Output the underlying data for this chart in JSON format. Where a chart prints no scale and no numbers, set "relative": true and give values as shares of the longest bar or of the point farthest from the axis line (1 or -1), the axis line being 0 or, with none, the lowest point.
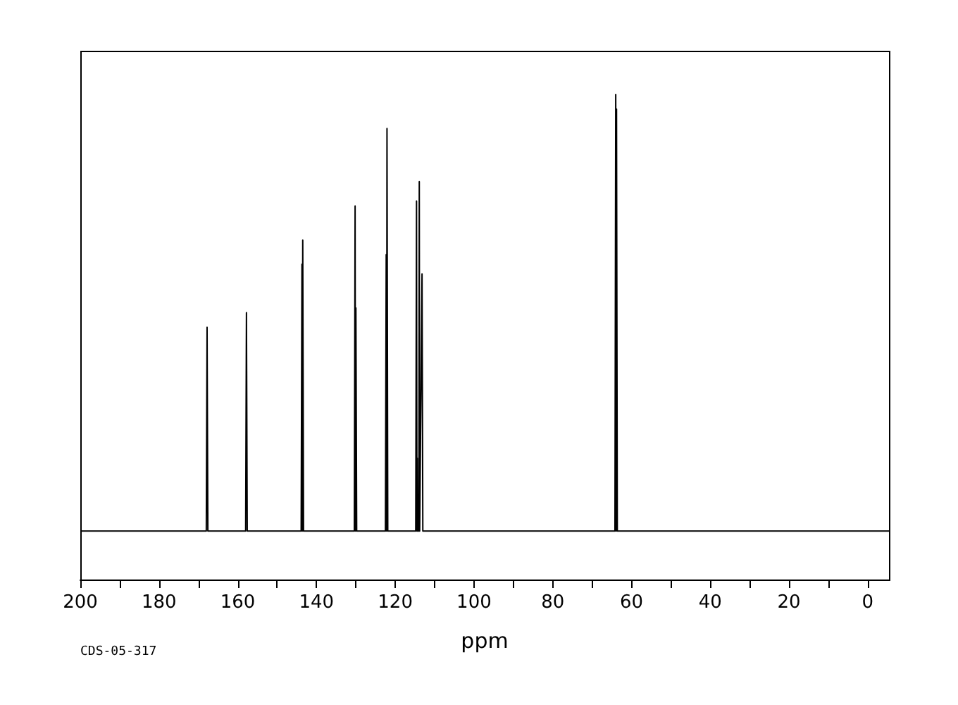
{
  "chart_data": {
    "type": "line",
    "relative": true,
    "xlabel": "ppm",
    "annotations": [
      "CDS-05-317"
    ],
    "xlim": [
      200,
      -5.4
    ],
    "xticks": [
      200,
      {
        "value": 190,
        "label": null
      },
      180,
      {
        "value": 170,
        "label": null
      },
      160,
      {
        "value": 150,
        "label": null
      },
      140,
      {
        "value": 130,
        "label": null
      },
      120,
      {
        "value": 110,
        "label": null
      },
      100,
      {
        "value": 90,
        "label": null
      },
      80,
      {
        "value": 70,
        "label": null
      },
      60,
      {
        "value": 50,
        "label": null
      },
      40,
      {
        "value": 30,
        "label": null
      },
      20,
      {
        "value": 10,
        "label": null
      },
      0
    ],
    "tick_labels": "x",
    "grid": false,
    "marker": "none",
    "line_style": "solid",
    "series": [
      {
        "color": "#000000",
        "x": [
          200,
          168.0,
          167.8,
          167.6,
          158.0,
          157.8,
          157.6,
          143.9,
          143.7,
          143.6,
          143.5,
          143.3,
          130.4,
          130.2,
          130.1,
          130.0,
          129.8,
          122.5,
          122.3,
          122.2,
          122.1,
          121.9,
          114.8,
          114.6,
          114.5,
          114.4,
          114.3,
          114.0,
          113.9,
          113.8,
          113.2,
          113.0,
          64.2,
          64.0,
          63.9,
          63.8,
          63.6,
          -5.4
        ],
        "values": [
          0.1,
          0.1,
          0.52,
          0.1,
          0.1,
          0.55,
          0.1,
          0.1,
          0.65,
          0.1,
          0.7,
          0.1,
          0.1,
          0.77,
          0.1,
          0.56,
          0.1,
          0.1,
          0.67,
          0.1,
          0.93,
          0.1,
          0.1,
          0.78,
          0.1,
          0.25,
          0.1,
          0.1,
          0.82,
          0.1,
          0.63,
          0.1,
          0.1,
          1,
          0.1,
          0.97,
          0.1,
          0.1
        ]
      }
    ]
  }
}
